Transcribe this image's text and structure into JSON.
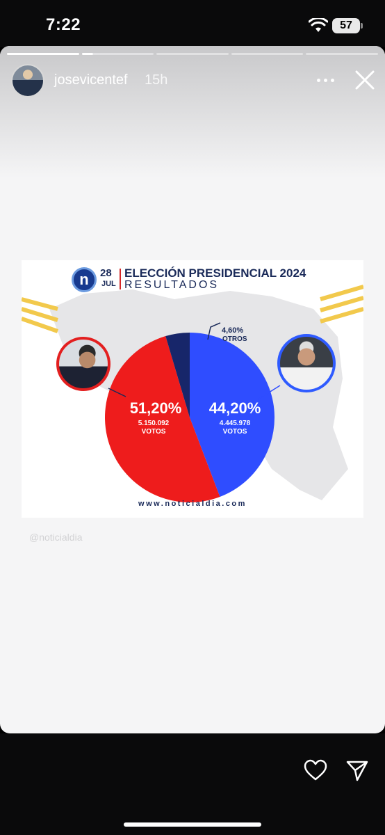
{
  "status_bar": {
    "time": "7:22",
    "battery": "57"
  },
  "story": {
    "username": "josevicentef",
    "timestamp": "15h",
    "progress": {
      "segments": 5,
      "current_index": 1,
      "current_fraction": 0.15
    }
  },
  "news_card": {
    "logo": "n",
    "date_day": "28",
    "date_month": "JUL",
    "headline": "ELECCIÓN PRESIDENCIAL 2024",
    "subheadline": "RESULTADOS",
    "website": "www.noticialdia.com",
    "source_handle": "@noticialdia"
  },
  "chart_data": {
    "type": "pie",
    "slices": [
      {
        "percent_label": "51,20%",
        "votes_label": "5.150.092",
        "unit_label": "VOTOS",
        "value": 51.2,
        "color": "#ee1c1c"
      },
      {
        "percent_label": "44,20%",
        "votes_label": "4.445.978",
        "unit_label": "VOTOS",
        "value": 44.2,
        "color": "#2f4dff"
      },
      {
        "percent_label": "4,60%",
        "votes_label": "",
        "unit_label": "OTROS",
        "value": 4.6,
        "color": "#17266a"
      }
    ]
  },
  "colors": {
    "red": "#ee1c1c",
    "blue": "#2f4dff",
    "navy": "#1a2a59"
  },
  "icons": {
    "heart": "heart-icon",
    "send": "send-icon",
    "more": "more-icon",
    "close": "close-icon",
    "wifi": "wifi-icon"
  }
}
